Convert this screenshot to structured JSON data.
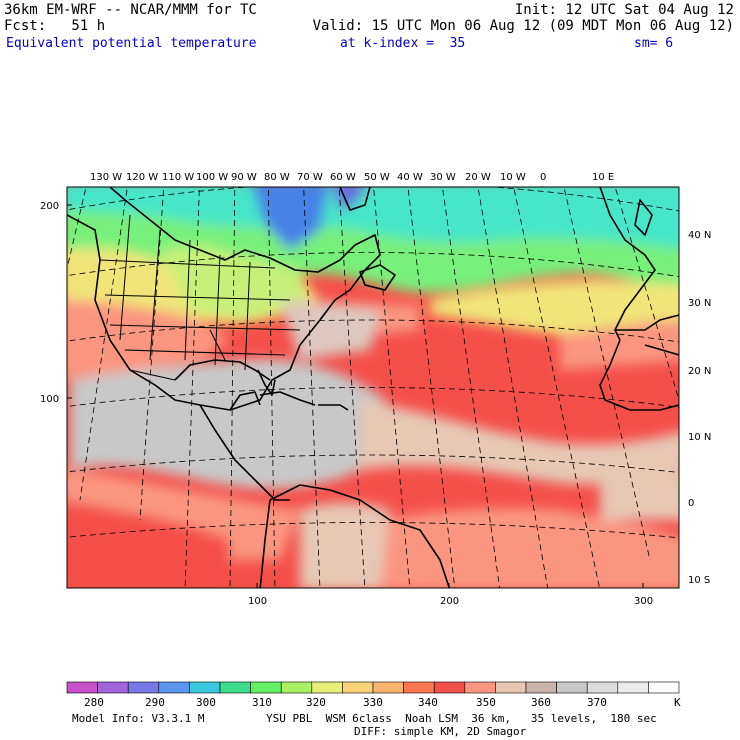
{
  "header": {
    "model": "36km EM-WRF -- NCAR/MMM for TC",
    "init": "Init: 12 UTC Sat 04 Aug 12",
    "fcst": "Fcst:   51 h",
    "valid": "Valid: 15 UTC Mon 06 Aug 12 (09 MDT Mon 06 Aug 12)",
    "field": "Equivalent potential temperature",
    "level": "at k-index =  35",
    "smoothing": "sm= 6"
  },
  "map": {
    "lon_labels": [
      "130 W",
      "120 W",
      "110 W",
      "100 W",
      "90 W",
      "80 W",
      "70 W",
      "60 W",
      "50 W",
      "40 W",
      "30 W",
      "20 W",
      "10 W",
      "0",
      "10 E"
    ],
    "lat_labels": [
      "40 N",
      "30 N",
      "20 N",
      "10 N",
      "0",
      "10 S"
    ],
    "y_grid_labels": [
      "200",
      "100"
    ],
    "x_grid_labels": [
      "100",
      "200",
      "300"
    ],
    "field_colors": {
      "ocean_warm": "#f4504a",
      "tropics_gray": "#c8c8c8",
      "beige": "#e6c8b4",
      "salmon": "#fa9680",
      "orange": "#fa7850",
      "green": "#78f07c",
      "yellow_green": "#c8f078",
      "yellow": "#f0e678",
      "cyan": "#46e6c8",
      "blue": "#4682e6"
    }
  },
  "colorbar": {
    "labels": [
      "280",
      "290",
      "300",
      "310",
      "320",
      "330",
      "340",
      "350",
      "360",
      "370"
    ],
    "unit": "K",
    "colors": [
      "#c850c8",
      "#a064dc",
      "#7878e6",
      "#5a96f0",
      "#3cc8dc",
      "#3cdc8c",
      "#64f064",
      "#aaf064",
      "#e6f078",
      "#fad278",
      "#fab46e",
      "#fa7850",
      "#f4504a",
      "#fa9680",
      "#e6c8b4",
      "#c8b4aa",
      "#c8c8c8",
      "#dcdcdc",
      "#ebebeb",
      "#ffffff"
    ]
  },
  "footer": {
    "model_info": "Model Info: V3.3.1 M",
    "physics": "YSU PBL  WSM 6class  Noah LSM  36 km,   35 levels,  180 sec",
    "diff": "DIFF: simple KM, 2D Smagor"
  }
}
